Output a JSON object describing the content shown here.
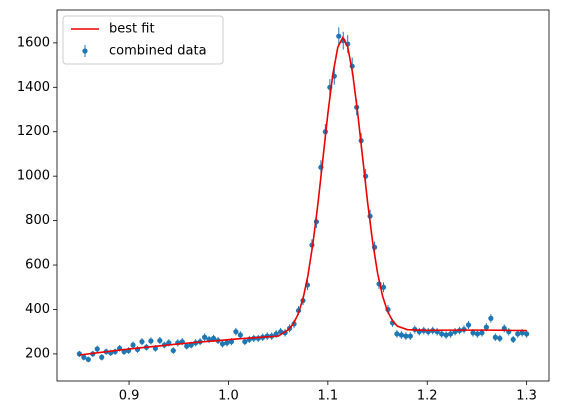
{
  "chart_data": {
    "type": "line",
    "xlim": [
      0.8275,
      1.3225
    ],
    "ylim": [
      78,
      1748
    ],
    "xticks": [
      0.9,
      {
        "value": 1,
        "label": "1.0"
      },
      1.1,
      1.2,
      1.3
    ],
    "yticks": [
      200,
      400,
      600,
      800,
      1000,
      1200,
      1400,
      1600
    ],
    "grid": false,
    "legend": "upper-left",
    "series": [
      {
        "name": "best fit",
        "type": "line",
        "color": "#ee0000",
        "x": [
          0.85,
          0.87,
          0.89,
          0.91,
          0.93,
          0.95,
          0.97,
          0.99,
          1.01,
          1.03,
          1.05,
          1.06,
          1.065,
          1.07,
          1.075,
          1.08,
          1.085,
          1.09,
          1.095,
          1.1,
          1.105,
          1.11,
          1.115,
          1.12,
          1.125,
          1.13,
          1.135,
          1.14,
          1.145,
          1.15,
          1.155,
          1.16,
          1.165,
          1.17,
          1.18,
          1.2,
          1.22,
          1.24,
          1.26,
          1.28,
          1.3
        ],
        "values": [
          195,
          206,
          217,
          227,
          236,
          245,
          253,
          260,
          268,
          274,
          280,
          308,
          334,
          378,
          448,
          554,
          697,
          875,
          1077,
          1281,
          1458,
          1580,
          1624,
          1582,
          1461,
          1285,
          1083,
          882,
          706,
          564,
          461,
          392,
          350,
          325,
          309,
          306,
          307,
          307,
          307,
          306,
          305
        ]
      },
      {
        "name": "combined data",
        "type": "errorbar",
        "color": "#1f77b4",
        "x": [
          0.85,
          0.8545,
          0.859,
          0.8635,
          0.868,
          0.8725,
          0.877,
          0.8815,
          0.886,
          0.8905,
          0.895,
          0.8995,
          0.904,
          0.9085,
          0.913,
          0.9175,
          0.922,
          0.9265,
          0.931,
          0.9355,
          0.94,
          0.9445,
          0.949,
          0.9535,
          0.958,
          0.9625,
          0.967,
          0.9715,
          0.976,
          0.9805,
          0.985,
          0.9895,
          0.994,
          0.9985,
          1.003,
          1.0075,
          1.012,
          1.0165,
          1.021,
          1.0255,
          1.03,
          1.0345,
          1.039,
          1.0435,
          1.048,
          1.0525,
          1.057,
          1.0615,
          1.066,
          1.0705,
          1.075,
          1.0795,
          1.084,
          1.0885,
          1.093,
          1.0975,
          1.102,
          1.1065,
          1.111,
          1.1155,
          1.12,
          1.1245,
          1.129,
          1.1335,
          1.138,
          1.1425,
          1.147,
          1.1515,
          1.156,
          1.1605,
          1.165,
          1.1695,
          1.174,
          1.1785,
          1.183,
          1.1875,
          1.192,
          1.1965,
          1.201,
          1.2055,
          1.21,
          1.2145,
          1.219,
          1.2235,
          1.228,
          1.2325,
          1.237,
          1.2415,
          1.246,
          1.2505,
          1.255,
          1.2595,
          1.264,
          1.2685,
          1.273,
          1.2775,
          1.282,
          1.2865,
          1.291,
          1.2955,
          1.3
        ],
        "values": [
          200,
          185,
          175,
          200,
          222,
          185,
          210,
          205,
          210,
          225,
          210,
          215,
          240,
          220,
          255,
          230,
          258,
          225,
          260,
          240,
          250,
          215,
          250,
          255,
          235,
          240,
          250,
          255,
          275,
          265,
          270,
          260,
          245,
          250,
          255,
          300,
          285,
          255,
          265,
          270,
          270,
          275,
          280,
          280,
          290,
          300,
          295,
          315,
          335,
          395,
          440,
          510,
          690,
          795,
          1040,
          1200,
          1400,
          1450,
          1630,
          1610,
          1595,
          1495,
          1310,
          1160,
          1000,
          820,
          680,
          515,
          500,
          400,
          340,
          290,
          285,
          280,
          280,
          310,
          300,
          305,
          300,
          305,
          300,
          290,
          285,
          290,
          300,
          305,
          310,
          330,
          295,
          290,
          295,
          320,
          360,
          275,
          270,
          315,
          300,
          265,
          290,
          295,
          290
        ],
        "errors": [
          14,
          14,
          13,
          14,
          15,
          14,
          14,
          14,
          14,
          15,
          14,
          15,
          15,
          15,
          16,
          15,
          16,
          15,
          16,
          15,
          16,
          15,
          16,
          16,
          15,
          15,
          16,
          16,
          17,
          16,
          16,
          16,
          16,
          16,
          16,
          17,
          17,
          16,
          16,
          16,
          16,
          17,
          17,
          17,
          17,
          17,
          17,
          18,
          18,
          20,
          21,
          23,
          26,
          28,
          32,
          35,
          37,
          38,
          40,
          40,
          40,
          39,
          36,
          34,
          32,
          29,
          26,
          23,
          22,
          20,
          18,
          17,
          17,
          17,
          17,
          18,
          17,
          17,
          17,
          17,
          17,
          17,
          17,
          17,
          17,
          17,
          18,
          18,
          17,
          17,
          17,
          18,
          19,
          17,
          16,
          18,
          17,
          16,
          17,
          17,
          17
        ]
      }
    ]
  }
}
